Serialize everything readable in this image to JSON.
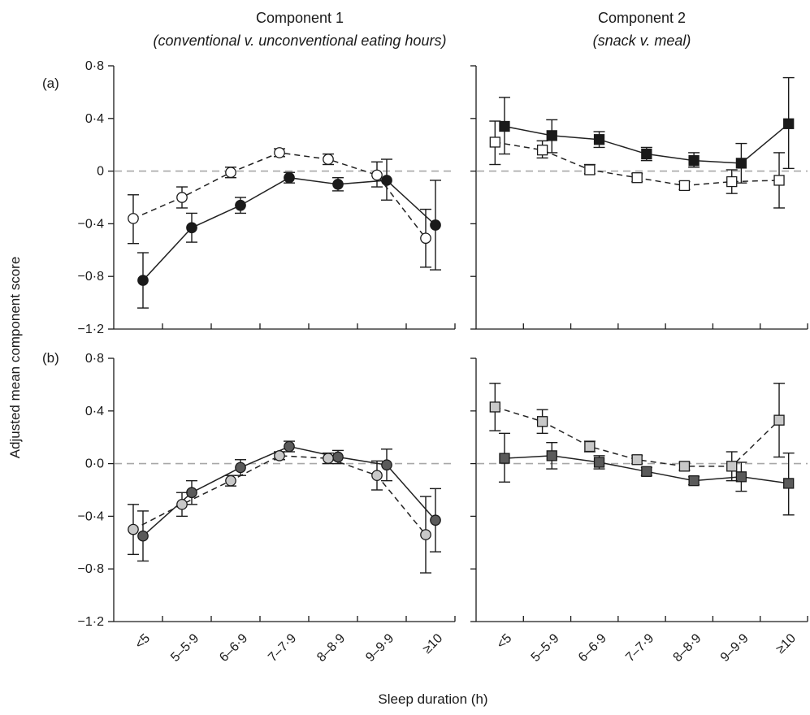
{
  "figure": {
    "ylabel": "Adjusted mean component score",
    "xlabel": "Sleep duration (h)",
    "columns": [
      {
        "title": "Component 1",
        "subtitle": "(conventional v. unconventional eating hours)"
      },
      {
        "title": "Component 2",
        "subtitle": "(snack v. meal)"
      }
    ],
    "rows": [
      "(a)",
      "(b)"
    ],
    "top_y_ticks": [
      "0·8",
      "0·4",
      "0",
      "−0·4",
      "−0·8",
      "−1·2"
    ],
    "bottom_y_ticks": [
      "0·8",
      "0·4",
      "0·0",
      "−0·4",
      "−0·8",
      "−1·2"
    ],
    "colors": {
      "black_fill": "#1a1a1a",
      "white_fill": "#ffffff",
      "dark_grey_fill": "#5a5a5a",
      "light_grey_fill": "#c8c8c8",
      "zero_line": "#a8a8a8"
    }
  },
  "chart_data": [
    {
      "type": "line",
      "panel": "a-component-1",
      "row_label": "(a)",
      "title": "Component 1",
      "subtitle": "(conventional v. unconventional eating hours)",
      "categories": [
        "<5",
        "5–5·9",
        "6–6·9",
        "7–7·9",
        "8–8·9",
        "9–9·9",
        "≥10"
      ],
      "ylim": [
        -1.2,
        0.8
      ],
      "y_ticks": [
        0.8,
        0.4,
        0,
        -0.4,
        -0.8,
        -1.2
      ],
      "reference_line": 0,
      "series": [
        {
          "marker": "circle",
          "fill": "#1a1a1a",
          "line": "solid",
          "values": [
            -0.83,
            -0.43,
            -0.26,
            -0.05,
            -0.1,
            -0.07,
            -0.41
          ],
          "lower": [
            -1.04,
            -0.54,
            -0.32,
            -0.09,
            -0.15,
            -0.22,
            -0.75
          ],
          "upper": [
            -0.62,
            -0.32,
            -0.2,
            -0.01,
            -0.05,
            0.09,
            -0.07
          ]
        },
        {
          "marker": "circle",
          "fill": "#ffffff",
          "line": "dashed",
          "values": [
            -0.36,
            -0.2,
            -0.01,
            0.14,
            0.09,
            -0.03,
            -0.51
          ],
          "lower": [
            -0.55,
            -0.28,
            -0.05,
            0.11,
            0.05,
            -0.12,
            -0.73
          ],
          "upper": [
            -0.18,
            -0.12,
            0.03,
            0.17,
            0.13,
            0.07,
            -0.29
          ]
        }
      ]
    },
    {
      "type": "line",
      "panel": "a-component-2",
      "row_label": "(a)",
      "title": "Component 2",
      "subtitle": "(snack v. meal)",
      "categories": [
        "<5",
        "5–5·9",
        "6–6·9",
        "7–7·9",
        "8–8·9",
        "9–9·9",
        "≥10"
      ],
      "ylim": [
        -1.2,
        0.8
      ],
      "y_ticks": [
        0.8,
        0.4,
        0,
        -0.4,
        -0.8,
        -1.2
      ],
      "reference_line": 0,
      "series": [
        {
          "marker": "square",
          "fill": "#1a1a1a",
          "line": "solid",
          "values": [
            0.34,
            0.27,
            0.24,
            0.13,
            0.08,
            0.06,
            0.36
          ],
          "lower": [
            0.13,
            0.14,
            0.18,
            0.08,
            0.03,
            -0.09,
            0.02
          ],
          "upper": [
            0.56,
            0.39,
            0.3,
            0.18,
            0.14,
            0.21,
            0.71
          ]
        },
        {
          "marker": "square",
          "fill": "#ffffff",
          "line": "dashed",
          "values": [
            0.22,
            0.16,
            0.01,
            -0.05,
            -0.11,
            -0.08,
            -0.07
          ],
          "lower": [
            0.05,
            0.1,
            -0.02,
            -0.08,
            -0.14,
            -0.17,
            -0.28
          ],
          "upper": [
            0.38,
            0.23,
            0.05,
            -0.02,
            -0.08,
            0.01,
            0.14
          ]
        }
      ]
    },
    {
      "type": "line",
      "panel": "b-component-1",
      "row_label": "(b)",
      "title": "Component 1",
      "categories": [
        "<5",
        "5–5·9",
        "6–6·9",
        "7–7·9",
        "8–8·9",
        "9–9·9",
        "≥10"
      ],
      "ylim": [
        -1.2,
        0.8
      ],
      "y_ticks": [
        0.8,
        0.4,
        0.0,
        -0.4,
        -0.8,
        -1.2
      ],
      "reference_line": 0,
      "series": [
        {
          "marker": "circle",
          "fill": "#5a5a5a",
          "line": "solid",
          "values": [
            -0.55,
            -0.22,
            -0.03,
            0.13,
            0.05,
            -0.01,
            -0.43
          ],
          "lower": [
            -0.74,
            -0.31,
            -0.09,
            0.09,
            0.0,
            -0.13,
            -0.67
          ],
          "upper": [
            -0.36,
            -0.13,
            0.03,
            0.17,
            0.1,
            0.11,
            -0.19
          ]
        },
        {
          "marker": "circle",
          "fill": "#c8c8c8",
          "line": "dashed",
          "values": [
            -0.5,
            -0.31,
            -0.13,
            0.06,
            0.04,
            -0.09,
            -0.54
          ],
          "lower": [
            -0.69,
            -0.4,
            -0.17,
            0.03,
            0.0,
            -0.2,
            -0.83
          ],
          "upper": [
            -0.31,
            -0.22,
            -0.09,
            0.09,
            0.08,
            0.02,
            -0.25
          ]
        }
      ]
    },
    {
      "type": "line",
      "panel": "b-component-2",
      "row_label": "(b)",
      "title": "Component 2",
      "categories": [
        "<5",
        "5–5·9",
        "6–6·9",
        "7–7·9",
        "8–8·9",
        "9–9·9",
        "≥10"
      ],
      "ylim": [
        -1.2,
        0.8
      ],
      "y_ticks": [
        0.8,
        0.4,
        0.0,
        -0.4,
        -0.8,
        -1.2
      ],
      "reference_line": 0,
      "series": [
        {
          "marker": "square",
          "fill": "#5a5a5a",
          "line": "solid",
          "values": [
            0.04,
            0.06,
            0.01,
            -0.06,
            -0.13,
            -0.1,
            -0.15
          ],
          "lower": [
            -0.14,
            -0.04,
            -0.04,
            -0.09,
            -0.16,
            -0.21,
            -0.39
          ],
          "upper": [
            0.23,
            0.16,
            0.06,
            -0.03,
            -0.1,
            0.01,
            0.08
          ]
        },
        {
          "marker": "square",
          "fill": "#c8c8c8",
          "line": "dashed",
          "values": [
            0.43,
            0.32,
            0.13,
            0.03,
            -0.02,
            -0.02,
            0.33
          ],
          "lower": [
            0.25,
            0.23,
            0.09,
            0.0,
            -0.05,
            -0.13,
            0.05
          ],
          "upper": [
            0.61,
            0.41,
            0.17,
            0.06,
            0.01,
            0.09,
            0.61
          ]
        }
      ]
    }
  ]
}
